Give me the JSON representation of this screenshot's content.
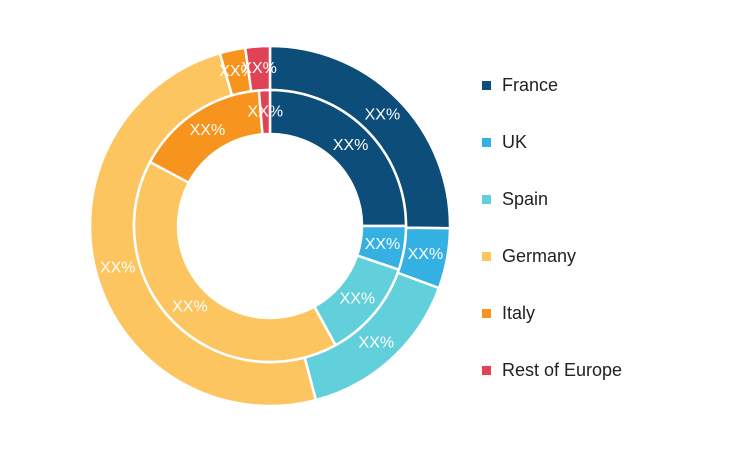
{
  "chart_data": {
    "type": "donut",
    "legend_position": "right",
    "categories": [
      "France",
      "UK",
      "Spain",
      "Germany",
      "Italy",
      "Rest of Europe"
    ],
    "colors": [
      "#0d4d7a",
      "#35b0e2",
      "#62d0da",
      "#fdc55f",
      "#f7941d",
      "#e04355"
    ],
    "series": [
      {
        "ring": "outer",
        "values": [
          25.2,
          5.4,
          15.3,
          49.6,
          2.3,
          2.2
        ],
        "labels": [
          "XX%",
          "XX%",
          "XX%",
          "XX%",
          "XX%",
          "XX%"
        ]
      },
      {
        "ring": "inner",
        "values": [
          25.0,
          5.2,
          11.8,
          40.8,
          15.9,
          1.3
        ],
        "labels": [
          "XX%",
          "XX%",
          "XX%",
          "XX%",
          "XX%",
          "XX%"
        ]
      }
    ]
  },
  "legend": {
    "items": [
      {
        "label": "France",
        "color": "#0d4d7a"
      },
      {
        "label": "UK",
        "color": "#35b0e2"
      },
      {
        "label": "Spain",
        "color": "#62d0da"
      },
      {
        "label": "Germany",
        "color": "#fdc55f"
      },
      {
        "label": "Italy",
        "color": "#f7941d"
      },
      {
        "label": "Rest of Europe",
        "color": "#e04355"
      }
    ]
  }
}
